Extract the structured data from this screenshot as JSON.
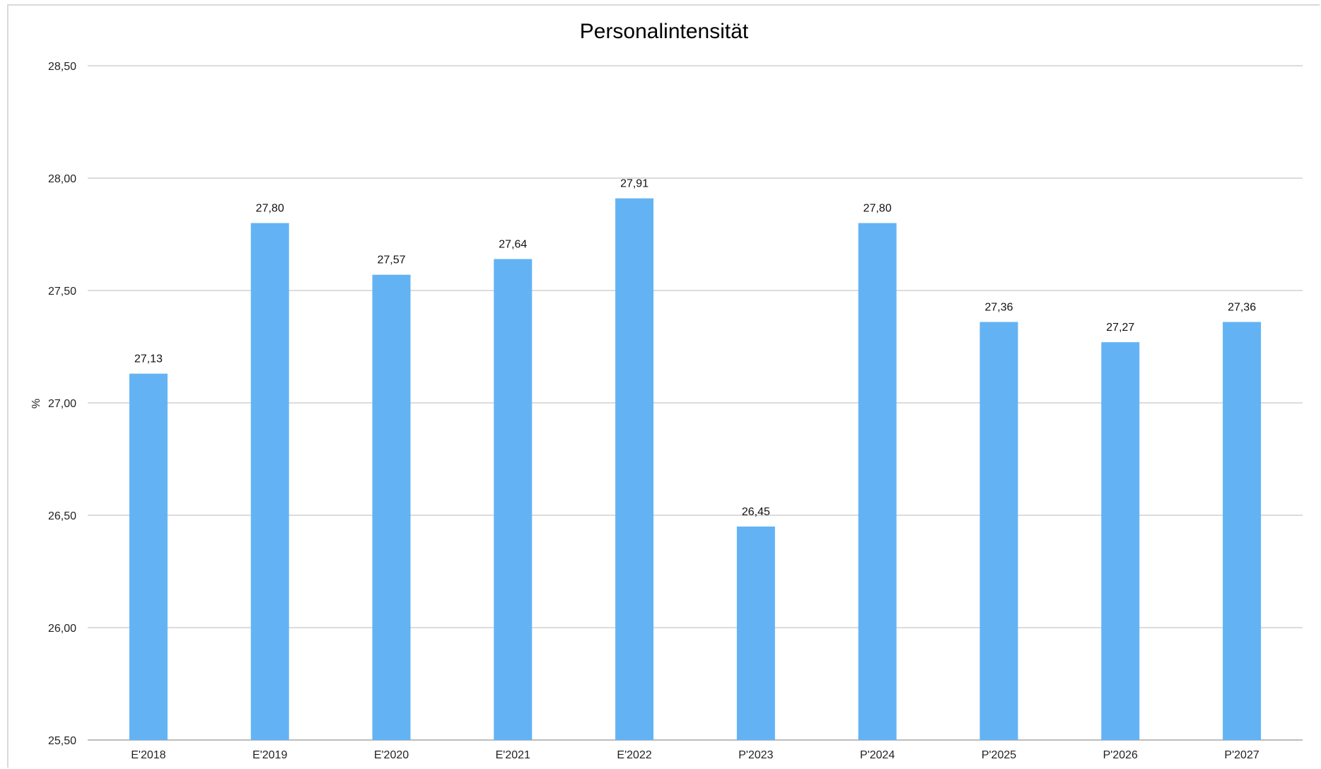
{
  "chart_data": {
    "type": "bar",
    "title": "Personalintensität",
    "xlabel": "",
    "ylabel": "%",
    "categories": [
      "E'2018",
      "E'2019",
      "E'2020",
      "E'2021",
      "E'2022",
      "P'2023",
      "P'2024",
      "P'2025",
      "P'2026",
      "P'2027"
    ],
    "values": [
      27.13,
      27.8,
      27.57,
      27.64,
      27.91,
      26.45,
      27.8,
      27.36,
      27.27,
      27.36
    ],
    "value_labels": [
      "27,13",
      "27,80",
      "27,57",
      "27,64",
      "27,91",
      "26,45",
      "27,80",
      "27,36",
      "27,27",
      "27,36"
    ],
    "ylim": [
      25.5,
      28.5
    ],
    "yticks": [
      25.5,
      26.0,
      26.5,
      27.0,
      27.5,
      28.0,
      28.5
    ],
    "ytick_labels": [
      "25,50",
      "26,00",
      "26,50",
      "27,00",
      "27,50",
      "28,00",
      "28,50"
    ],
    "grid": true,
    "legend": "none",
    "colors": {
      "bar": "#63b3f4",
      "grid": "#d0d0d0",
      "axis": "#bdbdbd"
    }
  }
}
